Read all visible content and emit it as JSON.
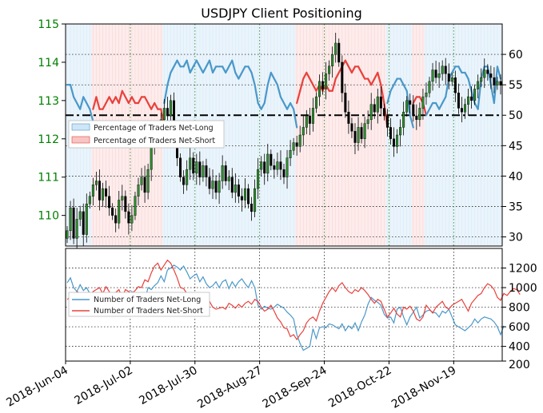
{
  "chart_data": [
    {
      "type": "candlestick_line_combo",
      "title": "USDJPY Client Positioning",
      "left_axis": {
        "label": "",
        "ticks": [
          110,
          111,
          112,
          113,
          114,
          115
        ],
        "range": [
          109.2,
          115.0
        ],
        "tick_color": "#008000"
      },
      "right_axis": {
        "label": "",
        "ticks": [
          30,
          35,
          40,
          45,
          50,
          55,
          60
        ],
        "range": [
          28.5,
          65.0
        ]
      },
      "reference_line": {
        "value": 50,
        "style": "dash-dot",
        "color": "#000000"
      },
      "grid": true,
      "legend": {
        "placement": "left",
        "entries": [
          "Percentage of Traders Net-Long",
          "Percentage of Traders Net-Short"
        ]
      },
      "colors": {
        "net_long": "#4a98c9",
        "net_short": "#e8413c",
        "candle": "#000000",
        "candle_up": "#2e8b2e"
      },
      "series": [
        {
          "name": "Percentage of Traders Net-Long",
          "values": [
            55,
            55,
            53,
            52,
            51,
            53,
            52,
            51,
            49,
            47,
            49,
            49,
            48,
            47,
            48,
            47,
            48,
            46,
            47,
            48,
            47,
            48,
            48,
            47,
            47,
            48,
            49,
            48,
            49,
            49,
            52,
            55,
            57,
            58,
            59,
            58,
            58,
            59,
            57,
            58,
            59,
            58,
            57,
            58,
            59,
            57,
            58,
            58,
            58,
            57,
            58,
            59,
            57,
            56,
            57,
            58,
            58,
            57,
            55,
            52,
            51,
            52,
            55,
            57,
            56,
            55,
            53,
            52,
            51,
            52,
            51,
            48,
            46,
            44,
            43,
            44,
            45,
            46,
            45,
            46,
            45,
            46,
            46,
            44,
            43,
            42,
            41,
            42,
            43,
            42,
            42,
            43,
            44,
            44,
            45,
            44,
            43,
            45,
            48,
            52,
            54,
            55,
            56,
            56,
            55,
            54,
            50,
            48,
            47,
            47,
            48,
            50,
            51,
            52,
            52,
            51,
            52,
            53,
            56,
            57,
            58,
            58,
            57,
            57,
            56,
            54,
            52,
            51,
            56,
            58,
            58,
            55,
            52,
            58,
            56
          ]
        },
        {
          "name": "Percentage of Traders Net-Short",
          "values": [
            45,
            45,
            47,
            48,
            49,
            47,
            48,
            49,
            51,
            53,
            51,
            51,
            52,
            53,
            52,
            53,
            52,
            54,
            53,
            52,
            53,
            52,
            52,
            53,
            53,
            52,
            51,
            52,
            51,
            51,
            48,
            45,
            43,
            42,
            41,
            42,
            42,
            41,
            43,
            42,
            41,
            42,
            43,
            42,
            41,
            43,
            42,
            42,
            42,
            43,
            42,
            41,
            43,
            44,
            43,
            42,
            42,
            43,
            45,
            48,
            49,
            48,
            45,
            43,
            44,
            45,
            47,
            48,
            49,
            48,
            49,
            52,
            54,
            56,
            57,
            56,
            55,
            54,
            55,
            54,
            55,
            54,
            54,
            56,
            57,
            58,
            59,
            58,
            57,
            58,
            58,
            57,
            56,
            56,
            55,
            56,
            57,
            55,
            52,
            48,
            46,
            45,
            44,
            44,
            45,
            46,
            50,
            52,
            53,
            53,
            52,
            50,
            49,
            48,
            48,
            49,
            48,
            47,
            44,
            43,
            42,
            42,
            43,
            43,
            44,
            46,
            48,
            49,
            44,
            42,
            42,
            45,
            48,
            42,
            44
          ]
        },
        {
          "name": "USDJPY",
          "close": [
            109.6,
            110.2,
            109.4,
            109.9,
            110.1,
            109.5,
            110.3,
            110.5,
            110.8,
            110.9,
            110.4,
            110.7,
            110.5,
            110.2,
            110.0,
            109.8,
            110.4,
            110.5,
            110.1,
            109.8,
            110.0,
            110.5,
            110.8,
            111.0,
            110.6,
            111.2,
            111.8,
            112.0,
            112.3,
            112.5,
            112.8,
            112.6,
            113.0,
            112.2,
            111.5,
            111.0,
            110.8,
            111.2,
            111.5,
            111.1,
            111.4,
            111.0,
            111.3,
            111.0,
            110.7,
            110.9,
            110.6,
            110.9,
            111.3,
            110.9,
            111.0,
            110.6,
            110.8,
            110.5,
            110.4,
            110.7,
            110.3,
            110.1,
            110.7,
            111.2,
            111.4,
            111.1,
            111.6,
            111.3,
            111.2,
            111.4,
            111.2,
            111.0,
            111.5,
            111.7,
            111.9,
            111.8,
            112.1,
            112.3,
            112.6,
            112.4,
            112.8,
            113.1,
            113.5,
            113.3,
            113.7,
            113.9,
            114.2,
            114.5,
            114.0,
            113.2,
            112.7,
            112.4,
            112.2,
            111.9,
            112.3,
            112.0,
            112.4,
            112.5,
            112.9,
            112.7,
            113.1,
            112.8,
            112.6,
            112.3,
            112.0,
            111.8,
            112.1,
            112.3,
            112.7,
            113.0,
            112.9,
            112.6,
            112.5,
            112.8,
            113.1,
            113.2,
            113.5,
            113.8,
            113.6,
            113.7,
            113.9,
            113.7,
            113.5,
            113.6,
            113.2,
            112.8,
            112.7,
            112.9,
            113.1,
            113.0,
            113.3,
            113.5,
            113.6,
            113.8,
            113.7,
            113.6,
            113.4,
            113.5,
            113.4
          ]
        }
      ],
      "x": {
        "tick_labels": [
          "2018-Jun-04",
          "2018-Jul-02",
          "2018-Jul-30",
          "2018-Aug-27",
          "2018-Sep-24",
          "2018-Oct-22",
          "2018-Nov-19"
        ]
      }
    },
    {
      "type": "line",
      "left_axis": {
        "ticks": []
      },
      "right_axis": {
        "ticks": [
          200,
          400,
          600,
          800,
          1000,
          1200
        ],
        "range": [
          250,
          1400
        ]
      },
      "grid": true,
      "legend": {
        "placement": "left",
        "entries": [
          "Number of Traders Net-Long",
          "Number of Traders Net-Short"
        ]
      },
      "series": [
        {
          "name": "Number of Traders Net-Long",
          "values": [
            1050,
            1100,
            1000,
            960,
            1030,
            970,
            1000,
            940,
            900,
            920,
            880,
            880,
            940,
            920,
            860,
            900,
            870,
            850,
            880,
            850,
            960,
            900,
            870,
            840,
            870,
            1000,
            980,
            1020,
            1050,
            1120,
            1060,
            1180,
            1200,
            1230,
            1210,
            1180,
            1220,
            1160,
            1090,
            1120,
            1140,
            1060,
            1110,
            1040,
            1000,
            1020,
            1060,
            1000,
            1060,
            1080,
            990,
            1060,
            1010,
            1060,
            1090,
            1040,
            1000,
            1070,
            1000,
            820,
            780,
            810,
            790,
            780,
            800,
            830,
            810,
            790,
            750,
            720,
            680,
            520,
            430,
            360,
            380,
            400,
            580,
            480,
            590,
            600,
            590,
            630,
            620,
            600,
            580,
            630,
            560,
            610,
            580,
            640,
            560,
            650,
            720,
            830,
            900,
            870,
            850,
            820,
            730,
            690,
            700,
            640,
            780,
            800,
            700,
            620,
            700,
            750,
            800,
            690,
            720,
            760,
            770,
            750,
            740,
            700,
            760,
            740,
            780,
            700,
            620,
            600,
            580,
            560,
            590,
            620,
            680,
            640,
            680,
            700,
            690,
            680,
            650,
            600,
            520,
            610
          ]
        },
        {
          "name": "Number of Traders Net-Short",
          "values": [
            880,
            900,
            890,
            960,
            940,
            920,
            900,
            880,
            960,
            980,
            1000,
            940,
            1010,
            960,
            900,
            950,
            980,
            900,
            980,
            960,
            940,
            970,
            1010,
            1000,
            1080,
            1060,
            1150,
            1220,
            1250,
            1180,
            1230,
            1280,
            1250,
            1180,
            1100,
            1000,
            990,
            940,
            860,
            870,
            920,
            860,
            820,
            840,
            860,
            800,
            780,
            790,
            800,
            780,
            840,
            820,
            790,
            830,
            800,
            840,
            860,
            830,
            880,
            860,
            800,
            760,
            780,
            820,
            760,
            690,
            650,
            590,
            580,
            500,
            520,
            470,
            520,
            560,
            640,
            680,
            700,
            660,
            760,
            840,
            900,
            960,
            1000,
            960,
            1020,
            1050,
            1000,
            960,
            940,
            980,
            960,
            1000,
            970,
            930,
            880,
            840,
            880,
            860,
            780,
            700,
            740,
            790,
            730,
            700,
            800,
            780,
            810,
            760,
            680,
            660,
            700,
            820,
            780,
            740,
            800,
            830,
            860,
            800,
            780,
            820,
            840,
            860,
            880,
            820,
            760,
            840,
            880,
            920,
            940,
            1000,
            1040,
            1020,
            980,
            900,
            870,
            940,
            920,
            960,
            990,
            980,
            930
          ]
        }
      ],
      "x": {
        "tick_labels": [
          "2018-Jun-04",
          "2018-Jul-02",
          "2018-Jul-30",
          "2018-Aug-27",
          "2018-Sep-24",
          "2018-Oct-22",
          "2018-Nov-19"
        ]
      }
    }
  ]
}
